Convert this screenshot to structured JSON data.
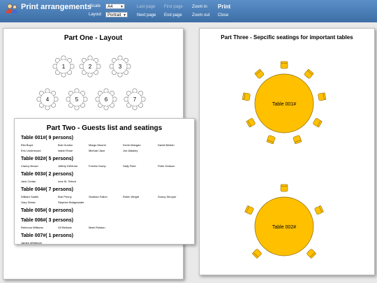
{
  "header": {
    "title": "Print arrangements",
    "scale_label": "Scale",
    "scale_value": "A4",
    "layout_label": "Layout",
    "layout_value": "Portrait",
    "last_page": "Last page",
    "next_page": "Next page",
    "first_page": "First page",
    "end_page": "End page",
    "zoom_in": "Zoom in",
    "zoom_out": "Zoom out",
    "print": "Print",
    "close": "Close"
  },
  "part_one": {
    "title": "Part One - Layout",
    "tables": [
      "1",
      "2",
      "3",
      "4",
      "5",
      "6",
      "7"
    ]
  },
  "part_two": {
    "title": "Part Two - Guests list and seatings",
    "tables": [
      {
        "label": "Table 001#( 9 persons)",
        "guests": [
          "Ella Boyd",
          "Bob Gunton",
          "Margo Moorer",
          "Kevin Mangan",
          "David Brisbin",
          "Eric Underwood",
          "Isabel Rose",
          "Michael Jace",
          "Joe Alaskey"
        ]
      },
      {
        "label": "Table 002#( 5 persons)",
        "guests": [
          "Clancy Brown",
          "Jeffrey DeMunn",
          "Forrest Gump",
          "Sally Field",
          "Peter Dobson"
        ]
      },
      {
        "label": "Table 003#( 2 persons)",
        "guests": [
          "Jack Cretan",
          "Ione M. Telech"
        ]
      },
      {
        "label": "Table 004#( 7 persons)",
        "guests": [
          "William Sadler",
          "Bob Penny",
          "Siobhan Fallon",
          "Robin Wright",
          "Sonny Shroyer",
          "Gary Sinise",
          "Stephen Bridgewater"
        ]
      },
      {
        "label": "Table 005#( 0 persons)",
        "guests": []
      },
      {
        "label": "Table 006#( 3 persons)",
        "guests": [
          "Rebecca Williams",
          "Gil Bellows",
          "Mark Rolston"
        ]
      },
      {
        "label": "Table 007#( 1 persons)",
        "guests": [
          "James Whitmore"
        ]
      }
    ]
  },
  "part_three": {
    "title": "Part Three - Sepcific seatings for important tables",
    "table_a": "Table 001#",
    "table_b": "Table 002#",
    "seat_color": "#ffc000"
  },
  "colors": {
    "toolbar": "#4a7db5",
    "table_fill": "#ffc000"
  }
}
